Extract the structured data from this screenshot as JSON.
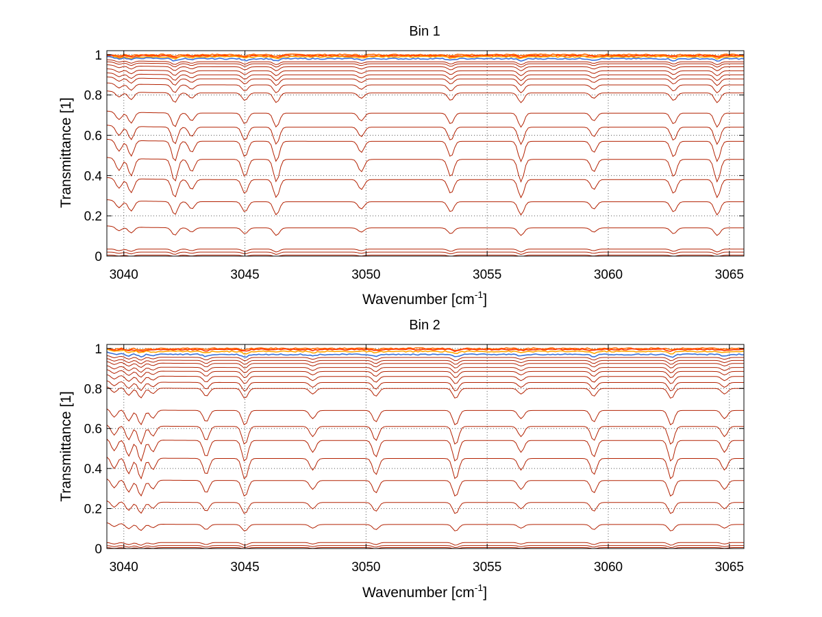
{
  "chart_data": [
    {
      "type": "line",
      "title": "Bin 1",
      "xlabel": "Wavenumber [cm",
      "xlabel_sup": "-1",
      "xlabel_end": "]",
      "ylabel": "Transmittance [1]",
      "xlim": [
        3039.3,
        3065.6
      ],
      "ylim": [
        0,
        1.02
      ],
      "xticks": [
        3040,
        3045,
        3050,
        3055,
        3060,
        3065
      ],
      "xtick_labels": [
        "3040",
        "3045",
        "3050",
        "3055",
        "3060",
        "3065"
      ],
      "yticks": [
        0,
        0.2,
        0.4,
        0.6,
        0.8,
        1
      ],
      "ytick_labels": [
        "0",
        "0.2",
        "0.4",
        "0.6",
        "0.8",
        "1"
      ],
      "grid": "dotted",
      "legend": "none",
      "line_color": "#b22000",
      "top_colors": [
        "#ff6a00",
        "#ff3300",
        "#ffa500",
        "#3a6fd8"
      ],
      "baselines": [
        1.0,
        0.995,
        0.99,
        0.98,
        0.965,
        0.955,
        0.94,
        0.92,
        0.9,
        0.88,
        0.85,
        0.81,
        0.71,
        0.64,
        0.57,
        0.48,
        0.38,
        0.27,
        0.14,
        0.035,
        0.02,
        0.005
      ],
      "absorption_lines": [
        3039.8,
        3040.3,
        3042.1,
        3042.8,
        3045.0,
        3046.3,
        3049.8,
        3053.5,
        3056.4,
        3059.4,
        3062.7,
        3064.5
      ]
    },
    {
      "type": "line",
      "title": "Bin 2",
      "xlabel": "Wavenumber [cm",
      "xlabel_sup": "-1",
      "xlabel_end": "]",
      "ylabel": "Transmittance [1]",
      "xlim": [
        3039.3,
        3065.6
      ],
      "ylim": [
        0,
        1.02
      ],
      "xticks": [
        3040,
        3045,
        3050,
        3055,
        3060,
        3065
      ],
      "xtick_labels": [
        "3040",
        "3045",
        "3050",
        "3055",
        "3060",
        "3065"
      ],
      "yticks": [
        0,
        0.2,
        0.4,
        0.6,
        0.8,
        1
      ],
      "ytick_labels": [
        "0",
        "0.2",
        "0.4",
        "0.6",
        "0.8",
        "1"
      ],
      "grid": "dotted",
      "legend": "none",
      "line_color": "#b22000",
      "top_colors": [
        "#ff6a00",
        "#ff3300",
        "#ffa500",
        "#3a6fd8"
      ],
      "baselines": [
        1.0,
        0.995,
        0.985,
        0.97,
        0.955,
        0.94,
        0.925,
        0.905,
        0.885,
        0.86,
        0.83,
        0.8,
        0.69,
        0.61,
        0.54,
        0.45,
        0.34,
        0.23,
        0.12,
        0.03,
        0.015,
        0.005
      ],
      "absorption_lines": [
        3039.6,
        3040.2,
        3040.7,
        3041.2,
        3043.4,
        3045.0,
        3047.8,
        3050.4,
        3053.7,
        3056.4,
        3059.4,
        3062.6,
        3064.8
      ]
    }
  ]
}
